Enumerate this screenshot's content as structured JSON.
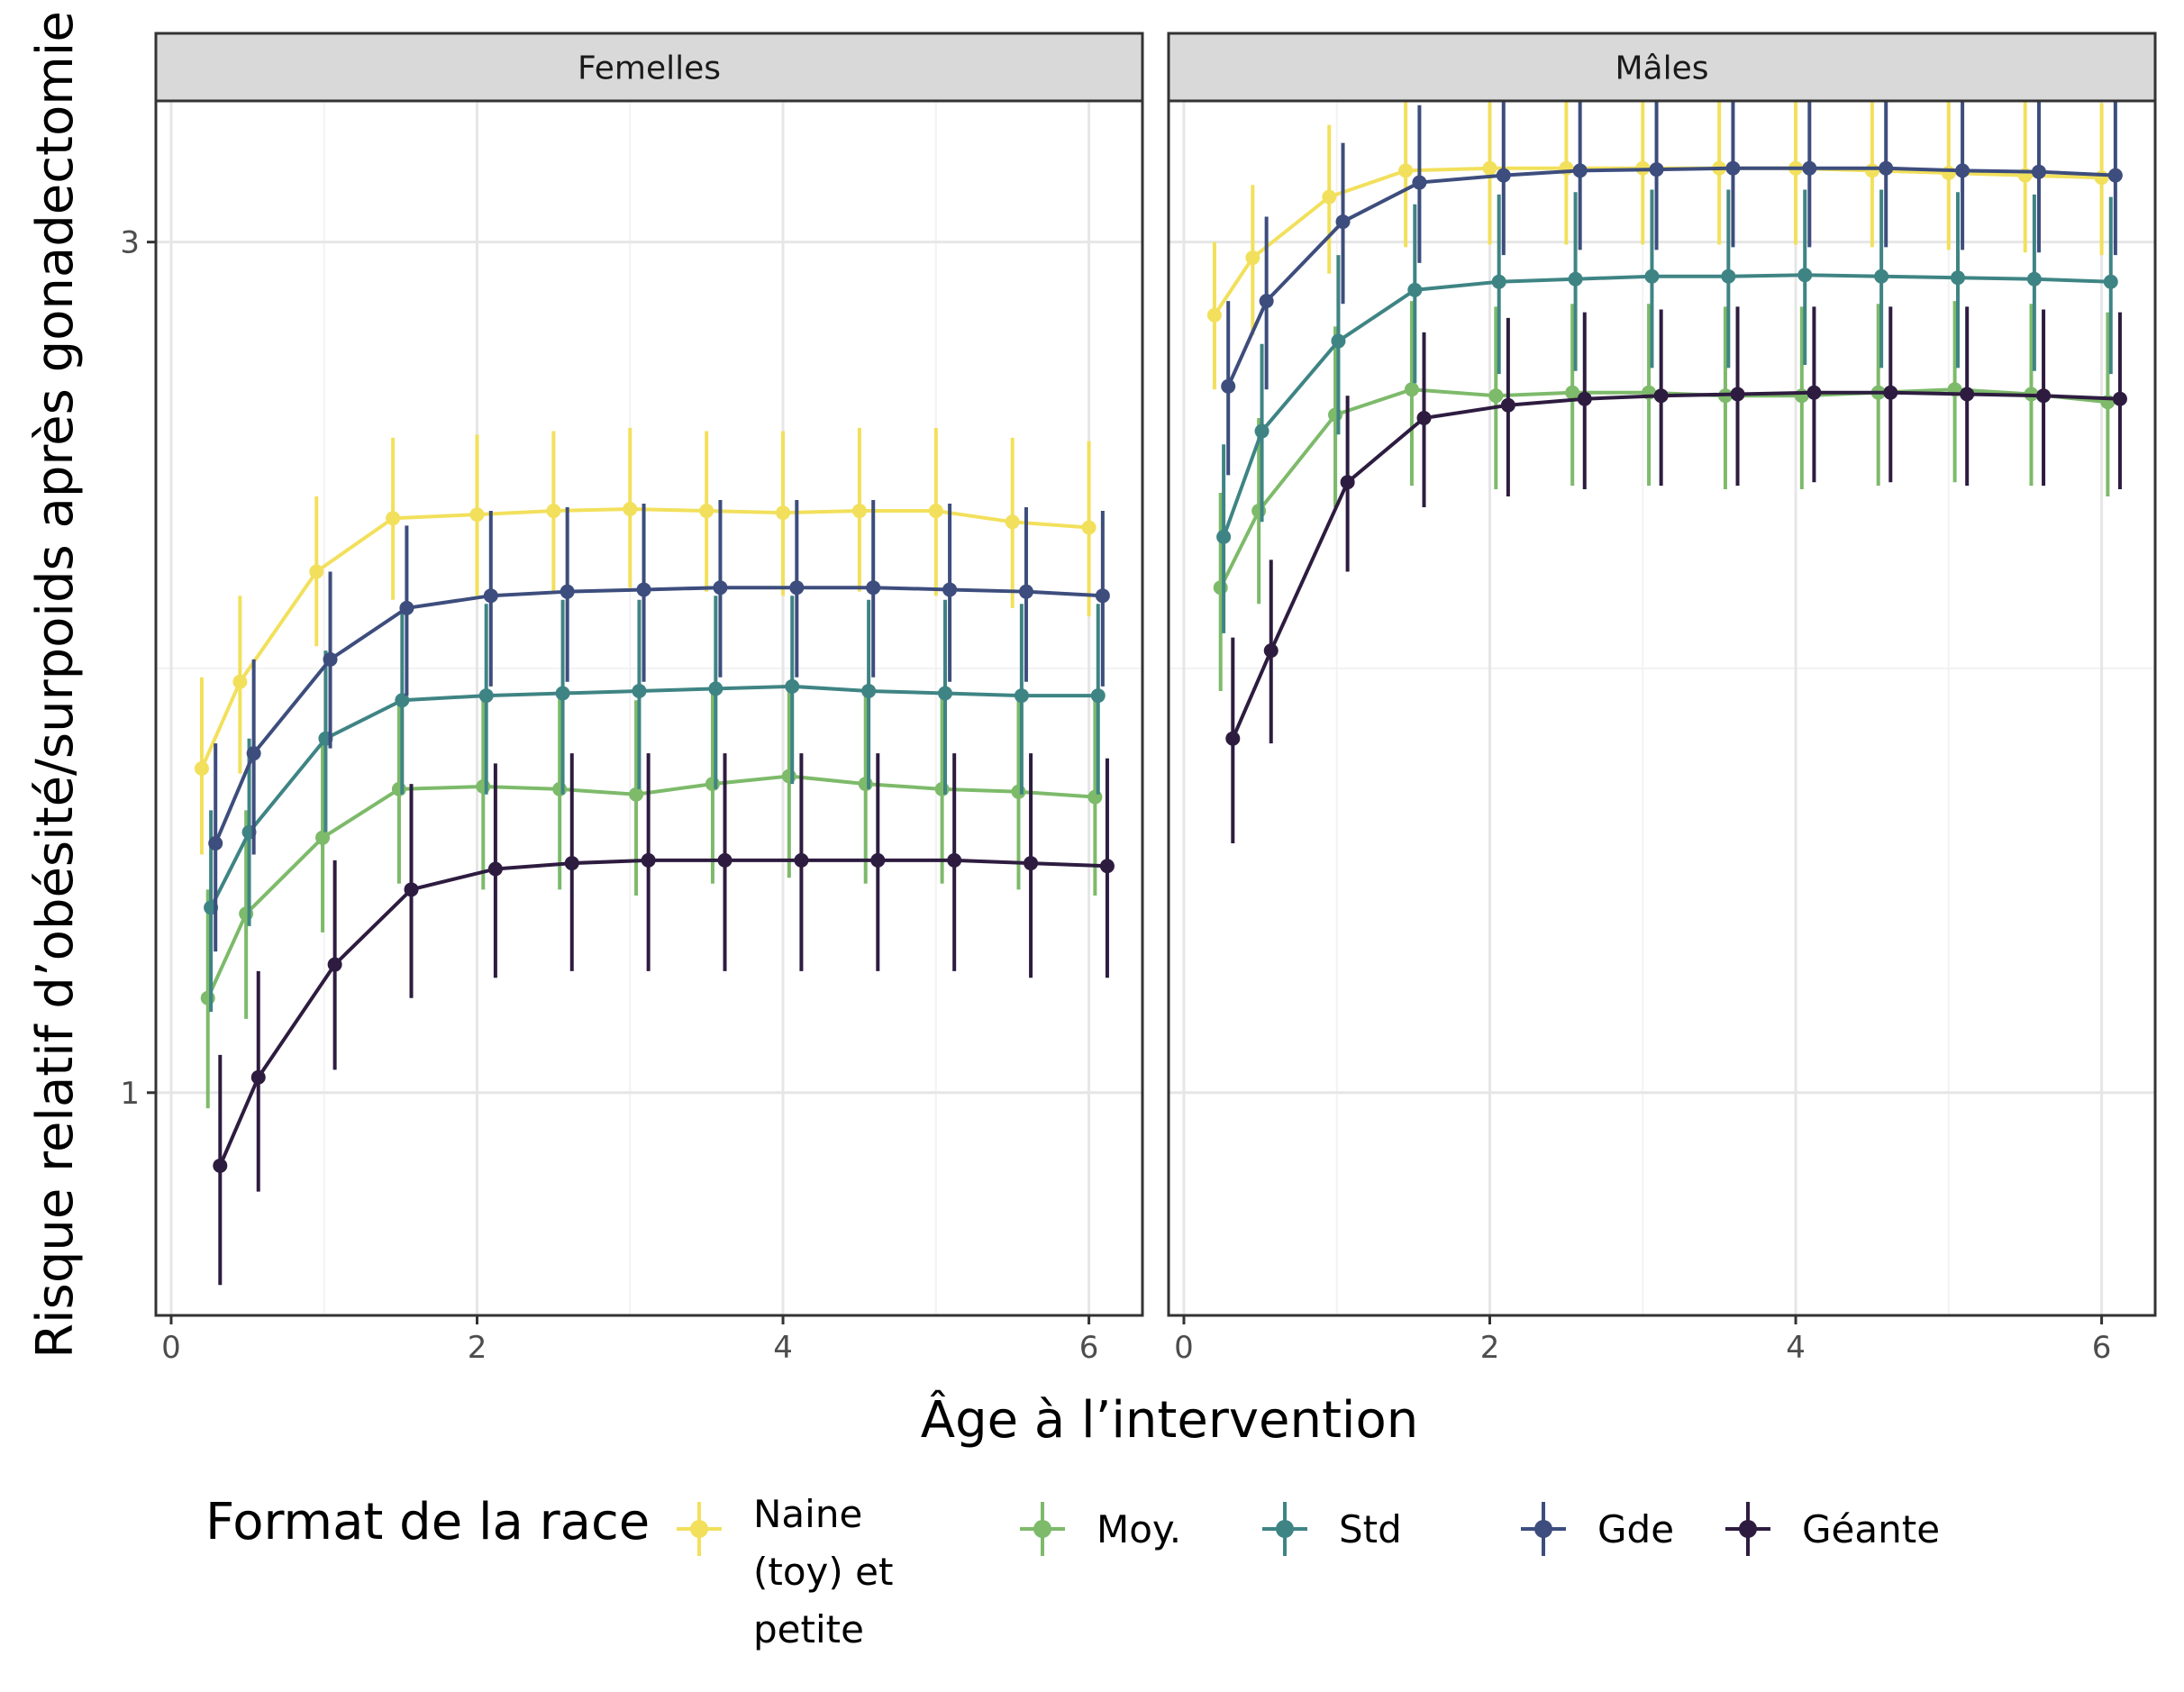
{
  "chart_data": {
    "type": "line",
    "ylabel": "Risque relatif d’obésité/surpoids après gonadectomie",
    "xlabel": "Âge à l’intervention",
    "xlim": [
      -0.1,
      6.35
    ],
    "x_ticks": [
      0,
      2,
      4,
      6
    ],
    "y_scale": "log",
    "ylim": [
      0.75,
      3.6
    ],
    "y_ticks": [
      {
        "value": 1,
        "label": "1"
      },
      {
        "value": 3,
        "label": "3"
      }
    ],
    "y_minor_gridlines": [
      1.73
    ],
    "grid": true,
    "legend": {
      "title": "Format de la race",
      "placement": "bottom",
      "items": [
        {
          "lines": [
            "Naine",
            "(toy) et",
            "petite"
          ],
          "color": "#F2E05C"
        },
        {
          "lines": [
            "Moy."
          ],
          "color": "#7DBA6A"
        },
        {
          "lines": [
            "Std"
          ],
          "color": "#3F8484"
        },
        {
          "lines": [
            "Gde"
          ],
          "color": "#3D4D7D"
        },
        {
          "lines": [
            "Géante"
          ],
          "color": "#2E1C40"
        }
      ]
    },
    "panels": [
      {
        "title": "Femelles",
        "x": [
          0.2,
          0.45,
          0.95,
          1.45,
          2.0,
          2.5,
          3.0,
          3.5,
          4.0,
          4.5,
          5.0,
          5.5,
          6.0
        ],
        "series": [
          {
            "legend_index": 0,
            "color": "#F2E05C",
            "offset": 0.0,
            "y": [
              1.52,
              1.7,
              1.96,
              2.1,
              2.11,
              2.12,
              2.125,
              2.12,
              2.115,
              2.12,
              2.12,
              2.09,
              2.075
            ],
            "low": [
              1.36,
              1.51,
              1.78,
              1.89,
              1.9,
              1.91,
              1.92,
              1.91,
              1.9,
              1.91,
              1.9,
              1.87,
              1.85
            ],
            "high": [
              1.71,
              1.9,
              2.16,
              2.33,
              2.34,
              2.35,
              2.36,
              2.35,
              2.35,
              2.36,
              2.36,
              2.33,
              2.32
            ]
          },
          {
            "legend_index": 1,
            "color": "#7DBA6A",
            "offset": 0.04,
            "y": [
              1.13,
              1.26,
              1.39,
              1.48,
              1.485,
              1.48,
              1.47,
              1.49,
              1.505,
              1.49,
              1.48,
              1.475,
              1.465
            ],
            "low": [
              0.98,
              1.1,
              1.23,
              1.31,
              1.3,
              1.3,
              1.29,
              1.31,
              1.32,
              1.31,
              1.31,
              1.3,
              1.29
            ],
            "high": [
              1.3,
              1.44,
              1.57,
              1.67,
              1.68,
              1.67,
              1.66,
              1.68,
              1.7,
              1.68,
              1.68,
              1.67,
              1.66
            ]
          },
          {
            "legend_index": 2,
            "color": "#3F8484",
            "offset": 0.06,
            "y": [
              1.27,
              1.4,
              1.58,
              1.66,
              1.67,
              1.675,
              1.68,
              1.685,
              1.69,
              1.68,
              1.675,
              1.67,
              1.67
            ],
            "low": [
              1.11,
              1.24,
              1.4,
              1.47,
              1.47,
              1.47,
              1.48,
              1.48,
              1.49,
              1.48,
              1.47,
              1.47,
              1.47
            ],
            "high": [
              1.44,
              1.58,
              1.77,
              1.86,
              1.88,
              1.89,
              1.89,
              1.9,
              1.9,
              1.89,
              1.89,
              1.88,
              1.88
            ]
          },
          {
            "legend_index": 3,
            "color": "#3D4D7D",
            "offset": 0.09,
            "y": [
              1.38,
              1.55,
              1.75,
              1.87,
              1.9,
              1.91,
              1.915,
              1.92,
              1.92,
              1.92,
              1.915,
              1.91,
              1.9
            ],
            "low": [
              1.2,
              1.36,
              1.56,
              1.67,
              1.69,
              1.7,
              1.7,
              1.71,
              1.71,
              1.71,
              1.7,
              1.7,
              1.69
            ],
            "high": [
              1.57,
              1.75,
              1.96,
              2.08,
              2.12,
              2.13,
              2.14,
              2.15,
              2.15,
              2.15,
              2.14,
              2.13,
              2.12
            ]
          },
          {
            "legend_index": 4,
            "color": "#2E1C40",
            "offset": 0.12,
            "y": [
              0.91,
              1.02,
              1.18,
              1.3,
              1.335,
              1.345,
              1.35,
              1.35,
              1.35,
              1.35,
              1.35,
              1.345,
              1.34
            ],
            "low": [
              0.78,
              0.88,
              1.03,
              1.13,
              1.16,
              1.17,
              1.17,
              1.17,
              1.17,
              1.17,
              1.17,
              1.16,
              1.16
            ],
            "high": [
              1.05,
              1.17,
              1.35,
              1.49,
              1.53,
              1.55,
              1.55,
              1.55,
              1.55,
              1.55,
              1.55,
              1.55,
              1.54
            ]
          }
        ]
      },
      {
        "title": "Mâles",
        "x": [
          0.2,
          0.45,
          0.95,
          1.45,
          2.0,
          2.5,
          3.0,
          3.5,
          4.0,
          4.5,
          5.0,
          5.5,
          6.0
        ],
        "series": [
          {
            "legend_index": 0,
            "color": "#F2E05C",
            "offset": 0.0,
            "y": [
              2.73,
              2.94,
              3.18,
              3.29,
              3.3,
              3.3,
              3.3,
              3.3,
              3.3,
              3.29,
              3.28,
              3.27,
              3.26
            ],
            "low": [
              2.48,
              2.66,
              2.88,
              2.98,
              2.99,
              2.99,
              2.99,
              2.99,
              2.99,
              2.98,
              2.97,
              2.96,
              2.95
            ],
            "high": [
              3.0,
              3.23,
              3.49,
              3.62,
              3.63,
              3.63,
              3.63,
              3.63,
              3.63,
              3.62,
              3.61,
              3.6,
              3.59
            ]
          },
          {
            "legend_index": 1,
            "color": "#7DBA6A",
            "offset": 0.04,
            "y": [
              1.92,
              2.12,
              2.4,
              2.48,
              2.46,
              2.47,
              2.47,
              2.46,
              2.46,
              2.47,
              2.48,
              2.465,
              2.44
            ],
            "low": [
              1.68,
              1.88,
              2.13,
              2.19,
              2.18,
              2.19,
              2.19,
              2.18,
              2.18,
              2.19,
              2.2,
              2.19,
              2.16
            ],
            "high": [
              2.17,
              2.39,
              2.69,
              2.78,
              2.76,
              2.77,
              2.77,
              2.76,
              2.76,
              2.77,
              2.78,
              2.77,
              2.74
            ]
          },
          {
            "legend_index": 2,
            "color": "#3F8484",
            "offset": 0.06,
            "y": [
              2.05,
              2.35,
              2.64,
              2.82,
              2.85,
              2.86,
              2.87,
              2.87,
              2.875,
              2.87,
              2.865,
              2.86,
              2.85
            ],
            "low": [
              1.81,
              2.09,
              2.34,
              2.5,
              2.53,
              2.54,
              2.55,
              2.55,
              2.56,
              2.55,
              2.55,
              2.54,
              2.53
            ],
            "high": [
              2.31,
              2.63,
              2.95,
              3.15,
              3.19,
              3.2,
              3.21,
              3.21,
              3.21,
              3.21,
              3.2,
              3.19,
              3.18
            ]
          },
          {
            "legend_index": 3,
            "color": "#3D4D7D",
            "offset": 0.09,
            "y": [
              2.49,
              2.78,
              3.08,
              3.24,
              3.27,
              3.29,
              3.295,
              3.3,
              3.3,
              3.3,
              3.29,
              3.285,
              3.27
            ],
            "low": [
              2.22,
              2.48,
              2.77,
              2.92,
              2.95,
              2.97,
              2.97,
              2.98,
              2.98,
              2.98,
              2.97,
              2.96,
              2.95
            ],
            "high": [
              2.78,
              3.1,
              3.41,
              3.58,
              3.62,
              3.64,
              3.64,
              3.65,
              3.65,
              3.65,
              3.64,
              3.63,
              3.61
            ]
          },
          {
            "legend_index": 4,
            "color": "#2E1C40",
            "offset": 0.12,
            "y": [
              1.58,
              1.77,
              2.2,
              2.39,
              2.43,
              2.45,
              2.46,
              2.465,
              2.47,
              2.47,
              2.465,
              2.46,
              2.45
            ],
            "low": [
              1.38,
              1.57,
              1.96,
              2.13,
              2.16,
              2.18,
              2.19,
              2.19,
              2.2,
              2.2,
              2.19,
              2.19,
              2.18
            ],
            "high": [
              1.8,
              1.99,
              2.46,
              2.67,
              2.72,
              2.74,
              2.75,
              2.76,
              2.76,
              2.76,
              2.76,
              2.75,
              2.74
            ]
          }
        ]
      }
    ]
  }
}
